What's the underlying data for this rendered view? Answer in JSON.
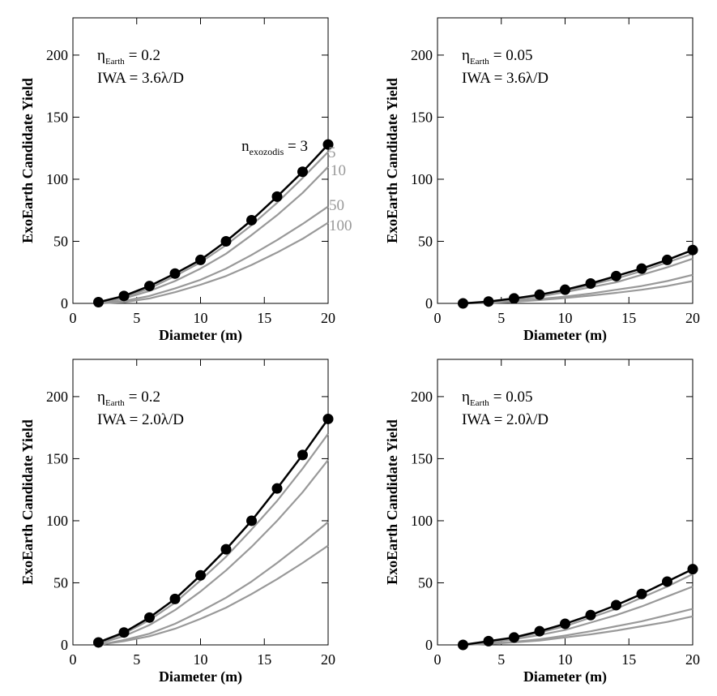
{
  "chart_data": [
    {
      "type": "line",
      "annotation": {
        "eta_symbol": "η",
        "eta_sub": "Earth",
        "eta_value": "= 0.2",
        "iwa": "IWA = 3.6λ/D"
      },
      "xlabel": "Diameter (m)",
      "ylabel": "ExoEarth Candidate Yield",
      "xlim": [
        0,
        20
      ],
      "ylim": [
        0,
        230
      ],
      "xticks": [
        0,
        5,
        10,
        15,
        20
      ],
      "yticks": [
        0,
        50,
        100,
        150,
        200
      ],
      "x": [
        2,
        4,
        6,
        8,
        10,
        12,
        14,
        16,
        18,
        20
      ],
      "series_labels": [
        {
          "series": 0,
          "parts": [
            "n",
            "exozodis",
            " = 3"
          ]
        },
        {
          "series": 1,
          "parts": [
            "5"
          ]
        },
        {
          "series": 2,
          "parts": [
            "10"
          ]
        },
        {
          "series": 3,
          "parts": [
            "50"
          ]
        },
        {
          "series": 4,
          "parts": [
            "100"
          ]
        }
      ],
      "series": [
        {
          "values": [
            1,
            6,
            14,
            24,
            35,
            50,
            67,
            86,
            106,
            128
          ],
          "color": "#000000",
          "markers": true
        },
        {
          "values": [
            1,
            5,
            12,
            22,
            33,
            47,
            63,
            81,
            101,
            122
          ],
          "color": "#999999",
          "markers": false
        },
        {
          "values": [
            0,
            4,
            10,
            18,
            28,
            40,
            55,
            71,
            89,
            110
          ],
          "color": "#999999",
          "markers": false
        },
        {
          "values": [
            0,
            2,
            6,
            12,
            19,
            28,
            39,
            51,
            64,
            78
          ],
          "color": "#999999",
          "markers": false
        },
        {
          "values": [
            0,
            1,
            4,
            9,
            15,
            22,
            31,
            41,
            52,
            65
          ],
          "color": "#999999",
          "markers": false
        }
      ]
    },
    {
      "type": "line",
      "annotation": {
        "eta_symbol": "η",
        "eta_sub": "Earth",
        "eta_value": "= 0.05",
        "iwa": "IWA = 3.6λ/D"
      },
      "xlabel": "Diameter (m)",
      "ylabel": "ExoEarth Candidate Yield",
      "xlim": [
        0,
        20
      ],
      "ylim": [
        0,
        230
      ],
      "xticks": [
        0,
        5,
        10,
        15,
        20
      ],
      "yticks": [
        0,
        50,
        100,
        150,
        200
      ],
      "x": [
        2,
        4,
        6,
        8,
        10,
        12,
        14,
        16,
        18,
        20
      ],
      "series_labels": [],
      "series": [
        {
          "values": [
            0,
            1.5,
            4,
            7,
            11,
            16,
            22,
            28,
            35,
            43
          ],
          "color": "#000000",
          "markers": true
        },
        {
          "values": [
            0,
            1.2,
            3.5,
            6.5,
            10,
            15,
            20,
            26,
            33,
            40
          ],
          "color": "#999999",
          "markers": false
        },
        {
          "values": [
            0,
            1,
            3,
            5.5,
            9,
            13,
            17,
            23,
            29,
            36
          ],
          "color": "#999999",
          "markers": false
        },
        {
          "values": [
            0,
            0.5,
            2,
            3.5,
            5.5,
            8,
            11,
            14,
            18,
            23
          ],
          "color": "#999999",
          "markers": false
        },
        {
          "values": [
            0,
            0.3,
            1.3,
            2.7,
            4.3,
            6.3,
            8.5,
            11,
            14,
            18
          ],
          "color": "#999999",
          "markers": false
        }
      ]
    },
    {
      "type": "line",
      "annotation": {
        "eta_symbol": "η",
        "eta_sub": "Earth",
        "eta_value": "= 0.2",
        "iwa": "IWA = 2.0λ/D"
      },
      "xlabel": "Diameter (m)",
      "ylabel": "ExoEarth Candidate Yield",
      "xlim": [
        0,
        20
      ],
      "ylim": [
        0,
        230
      ],
      "xticks": [
        0,
        5,
        10,
        15,
        20
      ],
      "yticks": [
        0,
        50,
        100,
        150,
        200
      ],
      "x": [
        2,
        4,
        6,
        8,
        10,
        12,
        14,
        16,
        18,
        20
      ],
      "series_labels": [],
      "series": [
        {
          "values": [
            2,
            10,
            22,
            37,
            56,
            77,
            100,
            126,
            153,
            182
          ],
          "color": "#000000",
          "markers": true
        },
        {
          "values": [
            1.5,
            9,
            20,
            34,
            52,
            71,
            93,
            116,
            142,
            170
          ],
          "color": "#999999",
          "markers": false
        },
        {
          "values": [
            1,
            7,
            16,
            28,
            43,
            60,
            79,
            100,
            123,
            149
          ],
          "color": "#999999",
          "markers": false
        },
        {
          "values": [
            0,
            4,
            9,
            17,
            27,
            38,
            51,
            66,
            82,
            99
          ],
          "color": "#999999",
          "markers": false
        },
        {
          "values": [
            0,
            3,
            7,
            13,
            21,
            30,
            41,
            53,
            66,
            80
          ],
          "color": "#999999",
          "markers": false
        }
      ]
    },
    {
      "type": "line",
      "annotation": {
        "eta_symbol": "η",
        "eta_sub": "Earth",
        "eta_value": "= 0.05",
        "iwa": "IWA = 2.0λ/D"
      },
      "xlabel": "Diameter (m)",
      "ylabel": "ExoEarth Candidate Yield",
      "xlim": [
        0,
        20
      ],
      "ylim": [
        0,
        230
      ],
      "xticks": [
        0,
        5,
        10,
        15,
        20
      ],
      "yticks": [
        0,
        50,
        100,
        150,
        200
      ],
      "x": [
        2,
        4,
        6,
        8,
        10,
        12,
        14,
        16,
        18,
        20
      ],
      "series_labels": [],
      "series": [
        {
          "values": [
            0,
            3,
            6,
            11,
            17,
            24,
            32,
            41,
            51,
            61
          ],
          "color": "#000000",
          "markers": true
        },
        {
          "values": [
            0,
            2.5,
            5.5,
            10,
            15,
            22,
            29,
            38,
            47,
            57
          ],
          "color": "#999999",
          "markers": false
        },
        {
          "values": [
            0,
            2,
            4.5,
            8,
            12,
            18,
            24,
            31,
            39,
            47
          ],
          "color": "#999999",
          "markers": false
        },
        {
          "values": [
            0,
            1,
            2.5,
            4.5,
            7.5,
            11,
            15,
            19,
            24,
            29
          ],
          "color": "#999999",
          "markers": false
        },
        {
          "values": [
            0,
            0.7,
            2,
            3.5,
            6,
            8.5,
            11.5,
            15,
            18.5,
            23
          ],
          "color": "#999999",
          "markers": false
        }
      ]
    }
  ]
}
